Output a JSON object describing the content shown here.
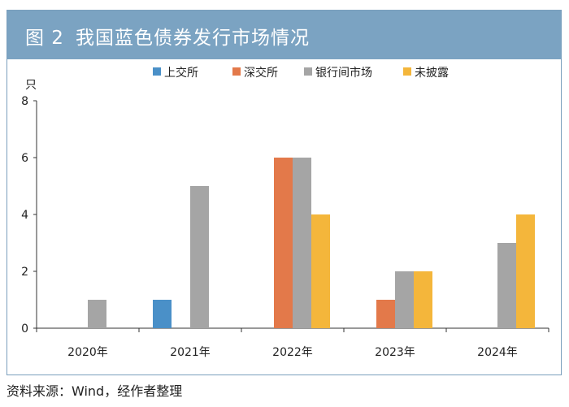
{
  "header": {
    "fig_label": "图 2",
    "title": "我国蓝色债券发行市场情况"
  },
  "source": "资料来源：Wind，经作者整理",
  "colors": {
    "header_bg": "#7ba3c2",
    "frame": "#7a9fbd"
  },
  "chart_data": {
    "type": "bar",
    "ylabel": "只",
    "ylim": [
      0,
      8
    ],
    "yticks": [
      0,
      2,
      4,
      6,
      8
    ],
    "categories": [
      "2020年",
      "2021年",
      "2022年",
      "2023年",
      "2024年"
    ],
    "legend_position": "top",
    "series": [
      {
        "name": "上交所",
        "color": "#4a90c8",
        "values": [
          0,
          1,
          0,
          0,
          0
        ]
      },
      {
        "name": "深交所",
        "color": "#e3794a",
        "values": [
          0,
          0,
          6,
          1,
          0
        ]
      },
      {
        "name": "银行间市场",
        "color": "#a5a5a5",
        "values": [
          1,
          5,
          6,
          2,
          3
        ]
      },
      {
        "name": "未披露",
        "color": "#f4b63b",
        "values": [
          0,
          0,
          4,
          2,
          4
        ]
      }
    ]
  }
}
